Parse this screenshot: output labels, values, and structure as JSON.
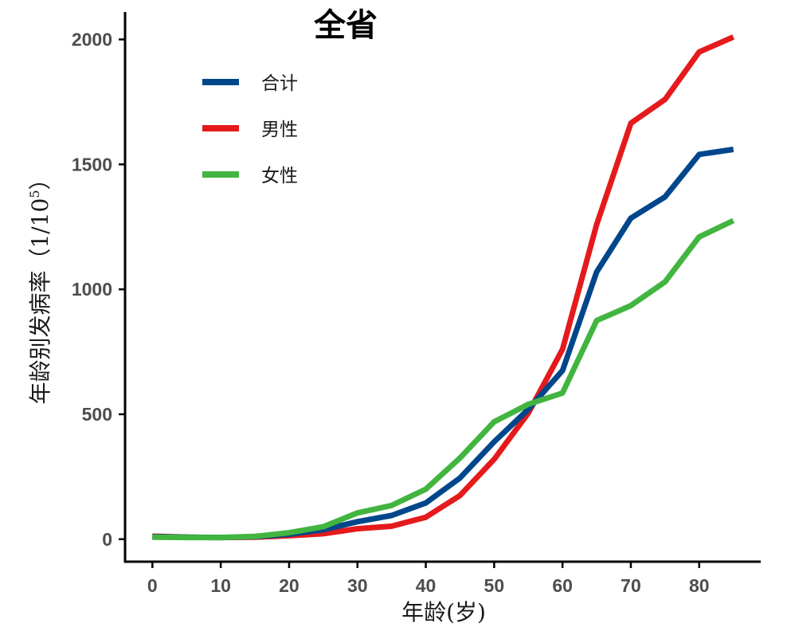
{
  "chart_data": {
    "type": "line",
    "title": "全省",
    "xlabel": "年龄(岁)",
    "ylabel": {
      "main": "年龄别发病率（1/10",
      "superscript": "5",
      "close": "）"
    },
    "xlim": [
      -4,
      89
    ],
    "ylim": [
      -90,
      2110
    ],
    "x_ticks": [
      0,
      10,
      20,
      30,
      40,
      50,
      60,
      70,
      80
    ],
    "y_ticks": [
      0,
      500,
      1000,
      1500,
      2000
    ],
    "grid": false,
    "legend_position": "top-left",
    "x": [
      0,
      5,
      10,
      15,
      20,
      25,
      30,
      35,
      40,
      45,
      50,
      55,
      60,
      65,
      70,
      75,
      80,
      85
    ],
    "series": [
      {
        "name": "男性",
        "color": "#e41a1c",
        "values": [
          12,
          8,
          7,
          8,
          14,
          22,
          42,
          52,
          88,
          175,
          320,
          505,
          760,
          1260,
          1665,
          1760,
          1950,
          2010
        ]
      },
      {
        "name": "合计",
        "color": "#00468b",
        "values": [
          10,
          8,
          7,
          10,
          20,
          38,
          70,
          95,
          145,
          245,
          390,
          520,
          675,
          1070,
          1285,
          1370,
          1540,
          1560
        ]
      },
      {
        "name": "女性",
        "color": "#42b540",
        "values": [
          8,
          7,
          7,
          11,
          26,
          50,
          105,
          135,
          200,
          325,
          470,
          540,
          585,
          875,
          935,
          1030,
          1210,
          1275
        ]
      }
    ],
    "legend_order": [
      "合计",
      "男性",
      "女性"
    ]
  }
}
